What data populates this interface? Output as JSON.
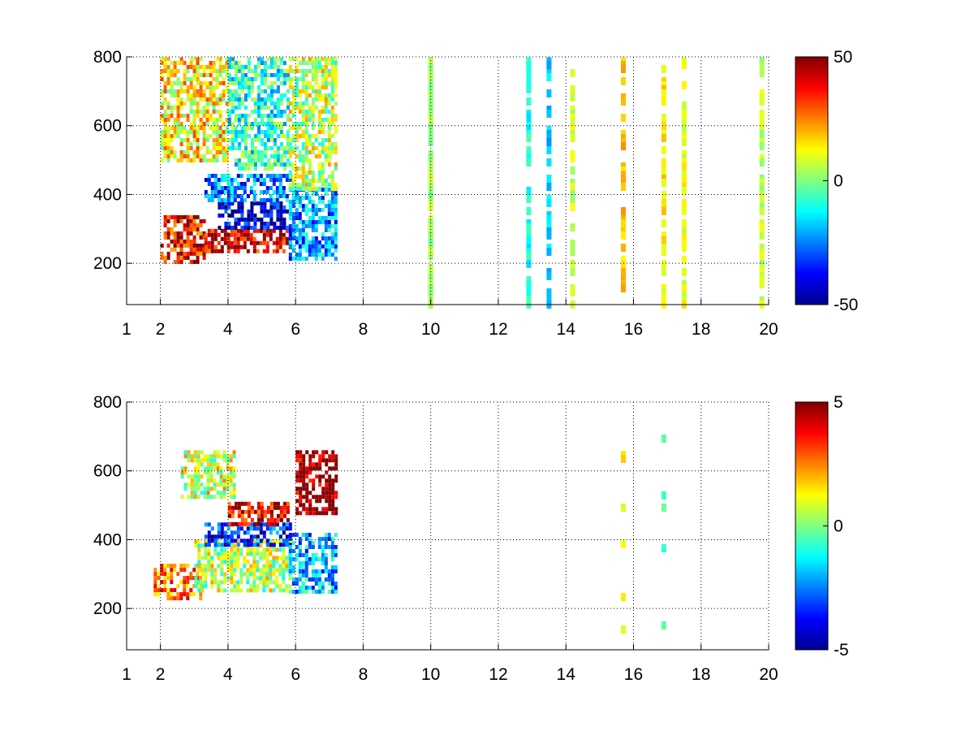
{
  "chart_data": [
    {
      "type": "heatmap",
      "x_ticks": [
        1,
        2,
        4,
        6,
        8,
        10,
        12,
        14,
        16,
        18,
        20
      ],
      "y_ticks": [
        200,
        400,
        600,
        800
      ],
      "xlim": [
        1,
        20
      ],
      "ylim": [
        80,
        800
      ],
      "grid": true,
      "colorbar": {
        "colormap": "jet",
        "clim": [
          -50,
          50
        ],
        "ticks": [
          50,
          0,
          -50
        ]
      },
      "regions": [
        {
          "x": [
            2.0,
            3.3
          ],
          "y": [
            200,
            340
          ],
          "value": 38
        },
        {
          "x": [
            3.3,
            5.8
          ],
          "y": [
            230,
            300
          ],
          "value": 42
        },
        {
          "x": [
            3.7,
            5.8
          ],
          "y": [
            300,
            380
          ],
          "value": -42
        },
        {
          "x": [
            3.3,
            5.8
          ],
          "y": [
            380,
            460
          ],
          "value": -25
        },
        {
          "x": [
            5.8,
            7.2
          ],
          "y": [
            210,
            420
          ],
          "value": -22
        },
        {
          "x": [
            2.0,
            4.0
          ],
          "y": [
            500,
            800
          ],
          "value": 14
        },
        {
          "x": [
            4.0,
            5.8
          ],
          "y": [
            480,
            800
          ],
          "value": -8
        },
        {
          "x": [
            5.8,
            7.2
          ],
          "y": [
            420,
            800
          ],
          "value": 6
        }
      ],
      "columns": [
        {
          "x": 10.0,
          "value": 4
        },
        {
          "x": 12.9,
          "value": -10
        },
        {
          "x": 13.5,
          "value": -18
        },
        {
          "x": 14.2,
          "value": 8
        },
        {
          "x": 15.7,
          "value": 18
        },
        {
          "x": 16.9,
          "value": 14
        },
        {
          "x": 17.5,
          "value": 10
        },
        {
          "x": 19.8,
          "value": 6
        }
      ]
    },
    {
      "type": "heatmap",
      "x_ticks": [
        1,
        2,
        4,
        6,
        8,
        10,
        12,
        14,
        16,
        18,
        20
      ],
      "y_ticks": [
        200,
        400,
        600,
        800
      ],
      "xlim": [
        1,
        20
      ],
      "ylim": [
        80,
        800
      ],
      "grid": true,
      "colorbar": {
        "colormap": "jet",
        "clim": [
          -5,
          5
        ],
        "ticks": [
          5,
          0,
          -5
        ]
      },
      "regions": [
        {
          "x": [
            1.8,
            3.2
          ],
          "y": [
            230,
            330
          ],
          "value": 2.5
        },
        {
          "x": [
            3.0,
            5.8
          ],
          "y": [
            250,
            400
          ],
          "value": 0.5
        },
        {
          "x": [
            3.3,
            5.8
          ],
          "y": [
            390,
            450
          ],
          "value": -3.5
        },
        {
          "x": [
            4.0,
            5.8
          ],
          "y": [
            450,
            510
          ],
          "value": 4.0
        },
        {
          "x": [
            6.0,
            7.2
          ],
          "y": [
            480,
            660
          ],
          "value": 5.0
        },
        {
          "x": [
            5.8,
            7.2
          ],
          "y": [
            250,
            420
          ],
          "value": -2.0
        },
        {
          "x": [
            2.6,
            4.2
          ],
          "y": [
            520,
            660
          ],
          "value": 0.8
        }
      ],
      "columns": [
        {
          "x": 15.7,
          "value": 1.5
        },
        {
          "x": 16.9,
          "value": -0.5
        }
      ]
    }
  ]
}
